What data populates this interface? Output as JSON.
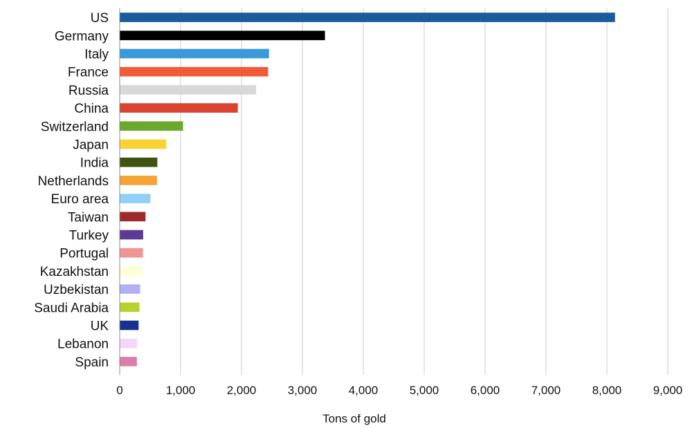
{
  "chart_data": {
    "type": "bar",
    "orientation": "horizontal",
    "title": "",
    "xlabel": "Tons of gold",
    "ylabel": "",
    "xlim": [
      0,
      9000
    ],
    "x_ticks": [
      0,
      1000,
      2000,
      3000,
      4000,
      5000,
      6000,
      7000,
      8000,
      9000
    ],
    "x_tick_labels": [
      "0",
      "1,000",
      "2,000",
      "3,000",
      "4,000",
      "5,000",
      "6,000",
      "7,000",
      "8,000",
      "9,000"
    ],
    "grid": true,
    "legend": "none",
    "categories": [
      "US",
      "Germany",
      "Italy",
      "France",
      "Russia",
      "China",
      "Switzerland",
      "Japan",
      "India",
      "Netherlands",
      "Euro area",
      "Taiwan",
      "Turkey",
      "Portugal",
      "Kazakhstan",
      "Uzbekistan",
      "Saudi Arabia",
      "UK",
      "Lebanon",
      "Spain"
    ],
    "values": [
      8134,
      3370,
      2452,
      2436,
      2240,
      1940,
      1040,
      765,
      618,
      613,
      505,
      424,
      385,
      382,
      380,
      336,
      323,
      310,
      287,
      282
    ],
    "colors": [
      "#1a5b9e",
      "#000000",
      "#3a9ad9",
      "#f05a37",
      "#d8d8d8",
      "#d94330",
      "#6aa82e",
      "#fad232",
      "#3f5212",
      "#f6a435",
      "#8fcff8",
      "#9e2a2b",
      "#5f3a92",
      "#f19496",
      "#ffffd6",
      "#b2b0f3",
      "#b7d32b",
      "#14328e",
      "#f5d6fa",
      "#db7fa8"
    ]
  }
}
